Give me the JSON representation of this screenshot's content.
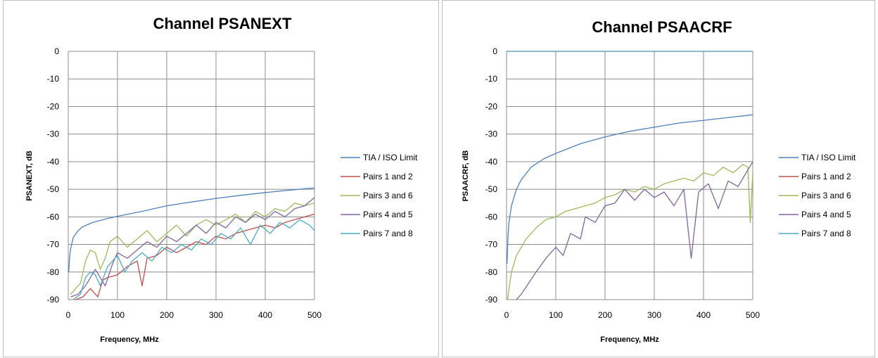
{
  "chart_data": [
    {
      "type": "line",
      "title": "Channel PSANEXT",
      "xlabel": "Frequency, MHz",
      "ylabel": "PSANEXT, dB",
      "xlim": [
        0,
        500
      ],
      "ylim": [
        -90,
        0
      ],
      "x_ticks": [
        "0",
        "100",
        "200",
        "300",
        "400",
        "500"
      ],
      "y_ticks": [
        "0",
        "-10",
        "-20",
        "-30",
        "-40",
        "-50",
        "-60",
        "-70",
        "-80",
        "-90"
      ],
      "grid": true,
      "legend": "right",
      "series": [
        {
          "name": "TIA / ISO Limit",
          "color": "#4f81bd",
          "x": [
            1,
            3,
            5,
            10,
            20,
            30,
            50,
            75,
            100,
            150,
            200,
            250,
            300,
            350,
            400,
            450,
            500
          ],
          "y": [
            -80,
            -74,
            -71.5,
            -67.5,
            -65,
            -63.5,
            -62,
            -60.8,
            -59.8,
            -58,
            -56,
            -54.6,
            -53.3,
            -52.2,
            -51.2,
            -50.3,
            -49.5
          ]
        },
        {
          "name": "Pairs 1 and 2",
          "color": "#c0504d",
          "x": [
            15,
            30,
            45,
            60,
            70,
            80,
            100,
            120,
            140,
            150,
            160,
            180,
            200,
            220,
            240,
            260,
            280,
            300,
            320,
            340,
            360,
            380,
            400,
            420,
            440,
            460,
            480,
            500
          ],
          "y": [
            -90,
            -89,
            -86,
            -89,
            -83,
            -82,
            -81,
            -78,
            -76,
            -85,
            -75,
            -74,
            -71,
            -73,
            -71,
            -69,
            -70,
            -67,
            -68,
            -66,
            -65,
            -64,
            -63,
            -64,
            -62,
            -61,
            -60,
            -59
          ]
        },
        {
          "name": "Pairs 3 and 6",
          "color": "#9bbb59",
          "x": [
            5,
            15,
            25,
            35,
            45,
            55,
            65,
            75,
            85,
            100,
            120,
            140,
            160,
            180,
            200,
            220,
            240,
            260,
            280,
            300,
            320,
            340,
            360,
            380,
            400,
            420,
            440,
            460,
            480,
            500
          ],
          "y": [
            -88,
            -86,
            -84,
            -76,
            -72,
            -73,
            -79,
            -75,
            -69,
            -67,
            -71,
            -68,
            -65,
            -69,
            -66,
            -63,
            -67,
            -63,
            -61,
            -63,
            -61,
            -59,
            -62,
            -58,
            -60,
            -57,
            -58,
            -55,
            -56,
            -55
          ]
        },
        {
          "name": "Pairs 4 and 5",
          "color": "#8064a2",
          "x": [
            5,
            20,
            35,
            45,
            55,
            65,
            75,
            90,
            100,
            120,
            140,
            160,
            180,
            200,
            220,
            240,
            260,
            280,
            300,
            320,
            340,
            360,
            380,
            400,
            420,
            440,
            460,
            480,
            500
          ],
          "y": [
            -89,
            -88,
            -85,
            -82,
            -79,
            -82,
            -85,
            -77,
            -73,
            -75,
            -72,
            -69,
            -71,
            -67,
            -69,
            -66,
            -63,
            -66,
            -62,
            -64,
            -60,
            -62,
            -59,
            -61,
            -58,
            -60,
            -57,
            -56,
            -53
          ]
        },
        {
          "name": "Pairs 7 and 8",
          "color": "#4bacc6",
          "x": [
            10,
            25,
            35,
            45,
            55,
            65,
            80,
            100,
            115,
            130,
            150,
            170,
            190,
            210,
            230,
            250,
            270,
            290,
            310,
            330,
            350,
            370,
            390,
            410,
            430,
            450,
            470,
            490,
            500
          ],
          "y": [
            -90,
            -88,
            -82,
            -80,
            -81,
            -85,
            -78,
            -74,
            -80,
            -76,
            -73,
            -76,
            -71,
            -73,
            -70,
            -72,
            -68,
            -70,
            -66,
            -68,
            -64,
            -70,
            -63,
            -66,
            -62,
            -64,
            -61,
            -63,
            -65
          ]
        }
      ]
    },
    {
      "type": "line",
      "title": "Channel PSAACRF",
      "xlabel": "Frequency, MHz",
      "ylabel": "PSAACRF, dB",
      "xlim": [
        0,
        500
      ],
      "ylim": [
        -90,
        0
      ],
      "x_ticks": [
        "0",
        "100",
        "200",
        "300",
        "400",
        "500"
      ],
      "y_ticks": [
        "0",
        "-10",
        "-20",
        "-30",
        "-40",
        "-50",
        "-60",
        "-70",
        "-80",
        "-90"
      ],
      "grid": true,
      "legend": "right",
      "series": [
        {
          "name": "TIA / ISO Limit",
          "color": "#4f81bd",
          "x": [
            1,
            3,
            5,
            10,
            20,
            30,
            50,
            75,
            100,
            150,
            200,
            250,
            300,
            350,
            400,
            450,
            500
          ],
          "y": [
            -77,
            -67,
            -62,
            -56,
            -50,
            -46.5,
            -42,
            -39,
            -37,
            -33.5,
            -31,
            -29,
            -27.5,
            -26,
            -25,
            -24,
            -23
          ]
        },
        {
          "name": "Pairs 1 and 2",
          "color": "#c0504d",
          "x": [
            0,
            500
          ],
          "y": [
            0,
            0
          ]
        },
        {
          "name": "Pairs 3 and 6",
          "color": "#9bbb59",
          "x": [
            2,
            10,
            20,
            40,
            60,
            80,
            100,
            120,
            140,
            160,
            180,
            200,
            220,
            240,
            260,
            280,
            300,
            320,
            340,
            360,
            380,
            400,
            420,
            440,
            460,
            480,
            490,
            495,
            500
          ],
          "y": [
            -90,
            -80,
            -74,
            -68,
            -64,
            -61,
            -60,
            -58,
            -57,
            -56,
            -55,
            -53,
            -52,
            -50,
            -51,
            -49,
            -50,
            -48,
            -47,
            -46,
            -47,
            -44,
            -45,
            -42,
            -44,
            -41,
            -42,
            -62,
            -44
          ]
        },
        {
          "name": "Pairs 4 and 5",
          "color": "#8064a2",
          "x": [
            20,
            30,
            45,
            60,
            80,
            100,
            115,
            130,
            150,
            160,
            180,
            200,
            220,
            240,
            260,
            280,
            300,
            320,
            340,
            360,
            375,
            390,
            410,
            430,
            450,
            470,
            490,
            500
          ],
          "y": [
            -90,
            -88,
            -84,
            -80,
            -75,
            -71,
            -74,
            -66,
            -68,
            -60,
            -62,
            -56,
            -55,
            -50,
            -54,
            -50,
            -53,
            -51,
            -56,
            -50,
            -75,
            -51,
            -48,
            -57,
            -47,
            -49,
            -43,
            -40
          ]
        },
        {
          "name": "Pairs 7 and 8",
          "color": "#4bacc6",
          "x": [
            0,
            500
          ],
          "y": [
            0,
            0
          ]
        }
      ]
    }
  ]
}
